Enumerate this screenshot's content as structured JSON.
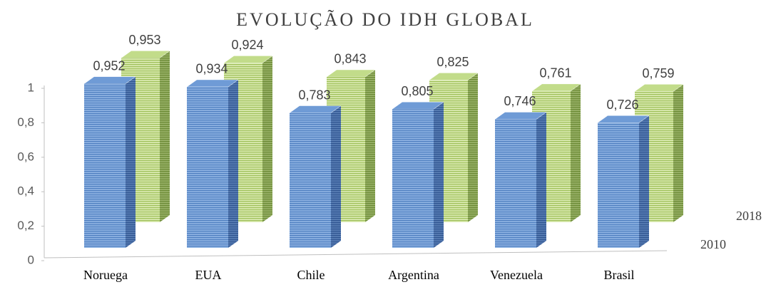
{
  "chart_data": {
    "type": "bar3d",
    "title": "EVOLUÇÃO DO IDH GLOBAL",
    "categories": [
      "Noruega",
      "EUA",
      "Chile",
      "Argentina",
      "Venezuela",
      "Brasil"
    ],
    "series": [
      {
        "name": "2010",
        "color": "#6f9bd6",
        "values": [
          0.952,
          0.934,
          0.783,
          0.805,
          0.746,
          0.726
        ],
        "value_labels": [
          "0,952",
          "0,934",
          "0,783",
          "0,805",
          "0,746",
          "0,726"
        ]
      },
      {
        "name": "2018",
        "color": "#c2dc8a",
        "values": [
          0.953,
          0.924,
          0.843,
          0.825,
          0.761,
          0.759
        ],
        "value_labels": [
          "0,953",
          "0,924",
          "0,843",
          "0,825",
          "0,761",
          "0,759"
        ]
      }
    ],
    "ylim": [
      0,
      1
    ],
    "yticks": [
      0,
      {
        "value": 0.2,
        "label": "0,2"
      },
      {
        "value": 0.4,
        "label": "0,4"
      },
      {
        "value": 0.6,
        "label": "0,6"
      },
      {
        "value": 0.8,
        "label": "0,8"
      },
      1
    ]
  }
}
